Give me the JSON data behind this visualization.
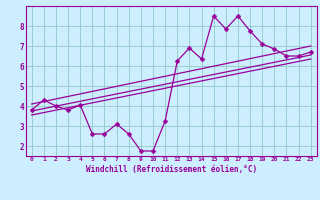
{
  "xlabel": "Windchill (Refroidissement éolien,°C)",
  "bg_color": "#cceeff",
  "line_color": "#990099",
  "grid_color": "#99cccc",
  "xlim": [
    -0.5,
    23.5
  ],
  "ylim": [
    1.5,
    9.0
  ],
  "xtick_vals": [
    0,
    1,
    2,
    3,
    4,
    5,
    6,
    7,
    8,
    9,
    10,
    11,
    12,
    13,
    14,
    15,
    16,
    17,
    18,
    19,
    20,
    21,
    22,
    23
  ],
  "xtick_labels": [
    "0",
    "1",
    "2",
    "3",
    "4",
    "5",
    "6",
    "7",
    "8",
    "9",
    "10",
    "11",
    "12",
    "13",
    "14",
    "15",
    "16",
    "17",
    "18",
    "19",
    "20",
    "21",
    "22",
    "23"
  ],
  "ytick_vals": [
    2,
    3,
    4,
    5,
    6,
    7,
    8
  ],
  "ytick_labels": [
    "2",
    "3",
    "4",
    "5",
    "6",
    "7",
    "8"
  ],
  "line1_x": [
    0,
    1,
    2,
    3,
    4,
    5,
    6,
    7,
    8,
    9,
    10,
    11,
    12,
    13,
    14,
    15,
    16,
    17,
    18,
    19,
    20,
    21,
    22,
    23
  ],
  "line1_y": [
    3.8,
    4.3,
    4.0,
    3.8,
    4.05,
    2.6,
    2.6,
    3.1,
    2.6,
    1.75,
    1.75,
    3.25,
    6.25,
    6.9,
    6.35,
    8.5,
    7.85,
    8.5,
    7.75,
    7.1,
    6.85,
    6.5,
    6.5,
    6.7
  ],
  "line2_x": [
    0,
    23
  ],
  "line2_y": [
    4.1,
    7.0
  ],
  "line3_x": [
    0,
    23
  ],
  "line3_y": [
    3.75,
    6.55
  ],
  "line4_x": [
    0,
    23
  ],
  "line4_y": [
    3.55,
    6.35
  ],
  "marker": "D",
  "marker_size": 2.5,
  "line_width": 0.9
}
